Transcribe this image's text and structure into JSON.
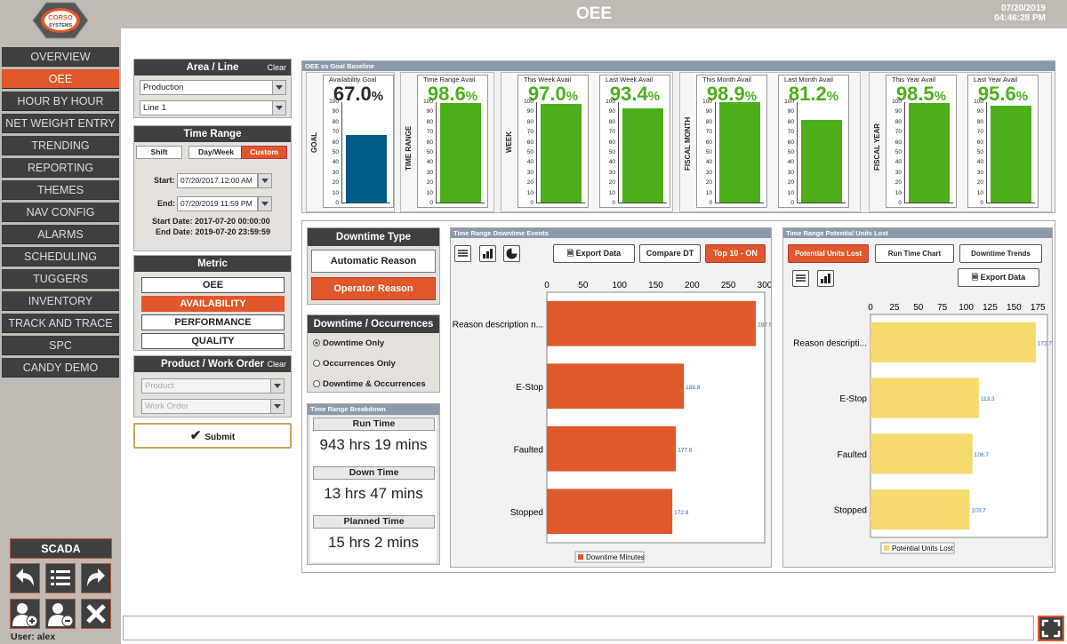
{
  "app": {
    "title": "OEE",
    "date": "07/20/2019",
    "time": "04:46:28 PM",
    "logo_text": "CORSO SYSTEMS"
  },
  "nav": {
    "items": [
      "OVERVIEW",
      "OEE",
      "HOUR BY HOUR",
      "NET WEIGHT ENTRY",
      "TRENDING",
      "REPORTING",
      "THEMES",
      "NAV CONFIG",
      "ALARMS",
      "SCHEDULING",
      "TUGGERS",
      "INVENTORY",
      "TRACK AND TRACE",
      "SPC",
      "CANDY DEMO"
    ],
    "active": "OEE",
    "scada": "SCADA",
    "user": "User: alex"
  },
  "area": {
    "title": "Area / Line",
    "clear": "Clear",
    "area": "Production",
    "line": "Line 1"
  },
  "time_range": {
    "title": "Time Range",
    "tabs": [
      "Shift",
      "Day/Week",
      "Custom"
    ],
    "active": "Custom",
    "start_label": "Start:",
    "start": "07/20/2017 12:00 AM",
    "end_label": "End:",
    "end": "07/20/2019 11:59 PM",
    "start_date": "Start Date: 2017-07-20 00:00:00",
    "end_date": "End Date: 2019-07-20 23:59:59"
  },
  "metric": {
    "title": "Metric",
    "options": [
      "OEE",
      "AVAILABILITY",
      "PERFORMANCE",
      "QUALITY"
    ],
    "active": "AVAILABILITY"
  },
  "product": {
    "title": "Product / Work Order",
    "clear": "Clear",
    "product_placeholder": "Product",
    "work_order_placeholder": "Work Order",
    "submit": "Submit"
  },
  "baseline": {
    "title": "OEE vs Goal Baseline",
    "ticks": [
      "100",
      "90",
      "80",
      "70",
      "60",
      "50",
      "40",
      "30",
      "20",
      "10",
      "0"
    ],
    "groups": [
      {
        "label": "GOAL",
        "gauges": [
          {
            "name": "Availability Goal",
            "value": "67.0",
            "num": 67.0,
            "color": "#005b8a"
          }
        ]
      },
      {
        "label": "TIME RANGE",
        "gauges": [
          {
            "name": "Time Range Avail",
            "value": "98.6",
            "num": 98.6,
            "color": "#4caf1a"
          }
        ]
      },
      {
        "label": "WEEK",
        "gauges": [
          {
            "name": "This Week Avail",
            "value": "97.0",
            "num": 97.0,
            "color": "#4caf1a"
          },
          {
            "name": "Last Week Avail",
            "value": "93.4",
            "num": 93.4,
            "color": "#4caf1a"
          }
        ]
      },
      {
        "label": "FISCAL MONTH",
        "gauges": [
          {
            "name": "This Month Avail",
            "value": "98.9",
            "num": 98.9,
            "color": "#4caf1a"
          },
          {
            "name": "Last Month Avail",
            "value": "81.2",
            "num": 81.2,
            "color": "#4caf1a"
          }
        ]
      },
      {
        "label": "FISCAL YEAR",
        "gauges": [
          {
            "name": "This Year Avail",
            "value": "98.5",
            "num": 98.5,
            "color": "#4caf1a"
          },
          {
            "name": "Last Year Avail",
            "value": "95.6",
            "num": 95.6,
            "color": "#4caf1a"
          }
        ]
      }
    ],
    "pct": "%"
  },
  "downtime_type": {
    "title": "Downtime Type",
    "options": [
      "Automatic Reason",
      "Operator Reason"
    ],
    "active": "Operator Reason"
  },
  "downtime_occ": {
    "title": "Downtime / Occurrences",
    "options": [
      "Downtime Only",
      "Occurrences Only",
      "Downtime & Occurrences"
    ],
    "selected": "Downtime Only"
  },
  "breakdown": {
    "title": "Time Range Breakdown",
    "items": [
      {
        "label": "Run Time",
        "value": "943 hrs 19 mins"
      },
      {
        "label": "Down Time",
        "value": "13 hrs 47 mins"
      },
      {
        "label": "Planned Time",
        "value": "15 hrs 2 mins"
      }
    ]
  },
  "events": {
    "title": "Time Range Downtime Events",
    "export": "Export Data",
    "compare": "Compare DT",
    "top10": "Top 10 - ON"
  },
  "units": {
    "title": "Time Range Potential Units Lost",
    "tabs": [
      "Potential Units Lost",
      "Run Time Chart",
      "Downtime Trends"
    ],
    "active": "Potential Units Lost",
    "export": "Export Data"
  },
  "chart_data": [
    {
      "type": "bar",
      "orientation": "horizontal",
      "categories": [
        "Reason description n...",
        "E-Stop",
        "Faulted",
        "Stopped"
      ],
      "values": [
        287.9,
        188.8,
        177.8,
        172.8
      ],
      "labels": [
        "287.9",
        "188.8",
        "177.8",
        "172.8"
      ],
      "xticks": [
        "0",
        "50",
        "100",
        "150",
        "200",
        "250",
        "300"
      ],
      "xlim": [
        0,
        300
      ],
      "legend": "Downtime Minutes",
      "color": "#e0592b"
    },
    {
      "type": "bar",
      "orientation": "horizontal",
      "categories": [
        "Reason descripti...",
        "E-Stop",
        "Faulted",
        "Stopped"
      ],
      "values": [
        172.7,
        113.3,
        106.7,
        103.7
      ],
      "labels": [
        "172.7",
        "113.3",
        "106.7",
        "103.7"
      ],
      "xticks": [
        "0",
        "25",
        "50",
        "75",
        "100",
        "125",
        "150",
        "175"
      ],
      "xlim": [
        0,
        185
      ],
      "legend": "Potential Units Lost",
      "color": "#f7da6e"
    }
  ]
}
